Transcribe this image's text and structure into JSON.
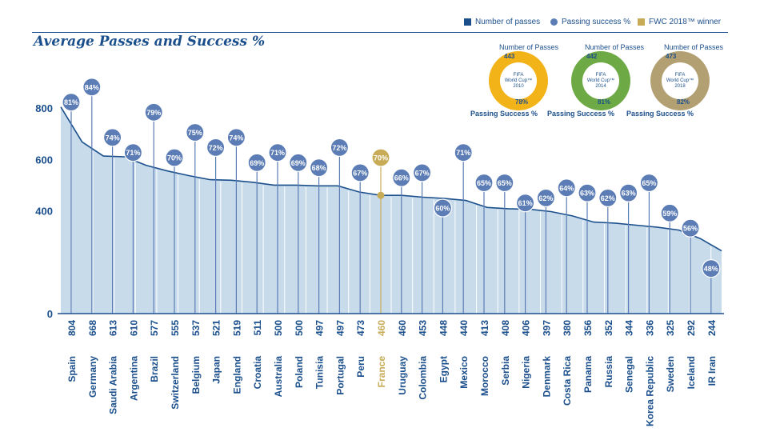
{
  "title": "Average Passes and Success %",
  "legend": {
    "passes": "Number of passes",
    "success": "Passing success %",
    "winner": "FWC 2018™ winner"
  },
  "colors": {
    "primary": "#1b4f8c",
    "area": "#c8dbeb",
    "bubble": "#5b7cb4",
    "winner": "#c7ab56",
    "donut_2010": "#f2b318",
    "donut_2014": "#6da944",
    "donut_2018": "#b3a072"
  },
  "donuts": [
    {
      "cap_top": "Number of Passes",
      "cap_bot": "Passing Success %",
      "passes": "443",
      "success": "78%",
      "line1": "FIFA",
      "line2": "World Cup™",
      "line3": "2010",
      "color": "#f2b318"
    },
    {
      "cap_top": "Number of Passes",
      "cap_bot": "Passing Success %",
      "passes": "442",
      "success": "81%",
      "line1": "FIFA",
      "line2": "World Cup™",
      "line3": "2014",
      "color": "#6da944"
    },
    {
      "cap_top": "Number of Passes",
      "cap_bot": "Passing Success %",
      "passes": "473",
      "success": "82%",
      "line1": "FIFA",
      "line2": "World Cup™",
      "line3": "2018",
      "color": "#b3a072"
    }
  ],
  "chart_data": {
    "type": "area",
    "title": "Average Passes and Success %",
    "ylim": [
      0,
      800
    ],
    "yticks": [
      0,
      400,
      600,
      800
    ],
    "categories": [
      "Spain",
      "Germany",
      "Saudi Arabia",
      "Argentina",
      "Brazil",
      "Switzerland",
      "Belgium",
      "Japan",
      "England",
      "Croatia",
      "Australia",
      "Poland",
      "Tunisia",
      "Portugal",
      "Peru",
      "France",
      "Uruguay",
      "Colombia",
      "Egypt",
      "Mexico",
      "Morocco",
      "Serbia",
      "Nigeria",
      "Denmark",
      "Costa Rica",
      "Panama",
      "Russia",
      "Senegal",
      "Korea Republic",
      "Sweden",
      "Iceland",
      "IR Iran"
    ],
    "series": [
      {
        "name": "Number of passes",
        "values": [
          804,
          668,
          613,
          610,
          577,
          555,
          537,
          521,
          519,
          511,
          500,
          500,
          497,
          497,
          473,
          460,
          460,
          453,
          448,
          440,
          413,
          408,
          406,
          397,
          380,
          356,
          352,
          344,
          336,
          325,
          292,
          244
        ]
      },
      {
        "name": "Passing success %",
        "values": [
          81,
          84,
          74,
          71,
          79,
          70,
          75,
          72,
          74,
          69,
          71,
          69,
          68,
          72,
          67,
          70,
          66,
          67,
          60,
          71,
          65,
          65,
          61,
          62,
          64,
          63,
          62,
          63,
          65,
          59,
          56,
          48
        ]
      }
    ],
    "value_labels": [
      "804",
      "668",
      "613",
      "610",
      "577",
      "555",
      "537",
      "521",
      "519",
      "511",
      "500",
      "500",
      "497",
      "497",
      "473",
      "460",
      "460",
      "453",
      "448",
      "440",
      "413",
      "408",
      "406",
      "397",
      "380",
      "356",
      "352",
      "344",
      "336",
      "325",
      "292",
      "244"
    ],
    "success_labels": [
      "81%",
      "84%",
      "74%",
      "71%",
      "79%",
      "70%",
      "75%",
      "72%",
      "74%",
      "69%",
      "71%",
      "69%",
      "68%",
      "72%",
      "67%",
      "70%",
      "66%",
      "67%",
      "60%",
      "71%",
      "65%",
      "65%",
      "61%",
      "62%",
      "64%",
      "63%",
      "62%",
      "63%",
      "65%",
      "59%",
      "56%",
      "48%"
    ],
    "highlight": "France"
  }
}
